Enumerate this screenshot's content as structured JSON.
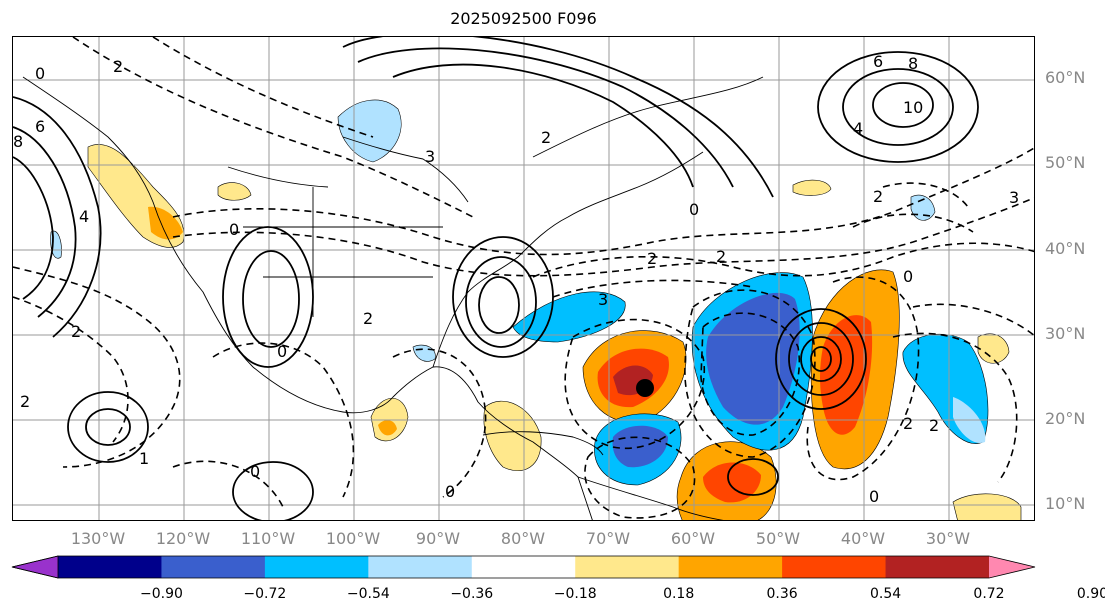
{
  "title": "2025092500 F096",
  "lat_labels": [
    {
      "text": "60°N",
      "value": 60
    },
    {
      "text": "50°N",
      "value": 50
    },
    {
      "text": "40°N",
      "value": 40
    },
    {
      "text": "30°N",
      "value": 30
    },
    {
      "text": "20°N",
      "value": 20
    },
    {
      "text": "10°N",
      "value": 10
    }
  ],
  "lon_labels": [
    {
      "text": "130°W",
      "value": -130
    },
    {
      "text": "120°W",
      "value": -120
    },
    {
      "text": "110°W",
      "value": -110
    },
    {
      "text": "100°W",
      "value": -100
    },
    {
      "text": "90°W",
      "value": -90
    },
    {
      "text": "80°W",
      "value": -80
    },
    {
      "text": "70°W",
      "value": -70
    },
    {
      "text": "60°W",
      "value": -60
    },
    {
      "text": "50°W",
      "value": -50
    },
    {
      "text": "40°W",
      "value": -40
    },
    {
      "text": "30°W",
      "value": -30
    }
  ],
  "colorbar": {
    "colors": [
      "#9932cc",
      "#00008b",
      "#3a5fcd",
      "#00bfff",
      "#b0e2ff",
      "#ffffff",
      "#ffe88c",
      "#ffa500",
      "#ff4500",
      "#b22222",
      "#ff88b0"
    ],
    "ticks": [
      "−0.90",
      "−0.72",
      "−0.54",
      "−0.36",
      "−0.18",
      "0.18",
      "0.36",
      "0.54",
      "0.72",
      "0.90"
    ]
  },
  "contour_labels": [
    "2",
    "0",
    "6",
    "8",
    "4",
    "3",
    "2",
    "0",
    "6",
    "8",
    "10",
    "4",
    "2",
    "3",
    "0",
    "2",
    "2",
    "0",
    "2",
    "3",
    "0",
    "2",
    "2",
    "0",
    "2",
    "1",
    "2",
    "0",
    "0"
  ],
  "marker": {
    "label": "storm-center"
  }
}
